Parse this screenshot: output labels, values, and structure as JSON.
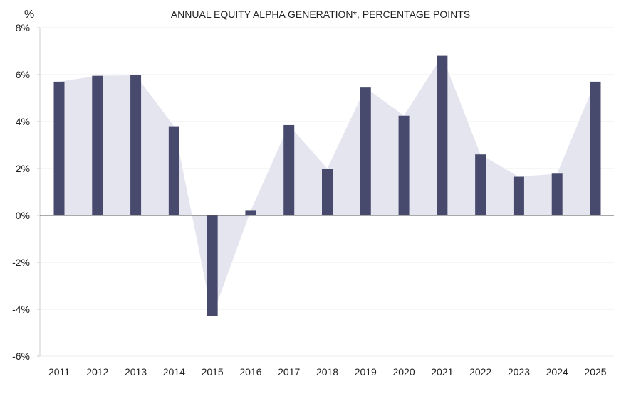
{
  "chart_data": {
    "type": "bar",
    "title": "ANNUAL EQUITY ALPHA GENERATION*, PERCENTAGE POINTS",
    "y_unit_label": "%",
    "xlabel": "",
    "ylabel": "%",
    "categories": [
      "2011",
      "2012",
      "2013",
      "2014",
      "2015",
      "2016",
      "2017",
      "2018",
      "2019",
      "2020",
      "2021",
      "2022",
      "2023",
      "2024",
      "2025"
    ],
    "series": [
      {
        "name": "Annual equity alpha",
        "values": [
          5.7,
          5.95,
          5.97,
          3.8,
          -4.3,
          0.2,
          3.85,
          2.0,
          5.45,
          4.25,
          6.8,
          2.6,
          1.65,
          1.78,
          5.7
        ]
      }
    ],
    "ylim": [
      -6,
      8
    ],
    "yticks": [
      {
        "value": 8,
        "label": "8%"
      },
      {
        "value": 6,
        "label": "6%"
      },
      {
        "value": 4,
        "label": "4%"
      },
      {
        "value": 2,
        "label": "2%"
      },
      {
        "value": 0,
        "label": "0%"
      },
      {
        "value": -2,
        "label": "-2%"
      },
      {
        "value": -4,
        "label": "-4%"
      },
      {
        "value": -6,
        "label": "-6%"
      }
    ],
    "grid": true,
    "colors": {
      "bar": "#474a6d",
      "area": "#e5e5f0",
      "grid": "#eeeeee",
      "axis": "#555555",
      "text": "#222222"
    }
  }
}
